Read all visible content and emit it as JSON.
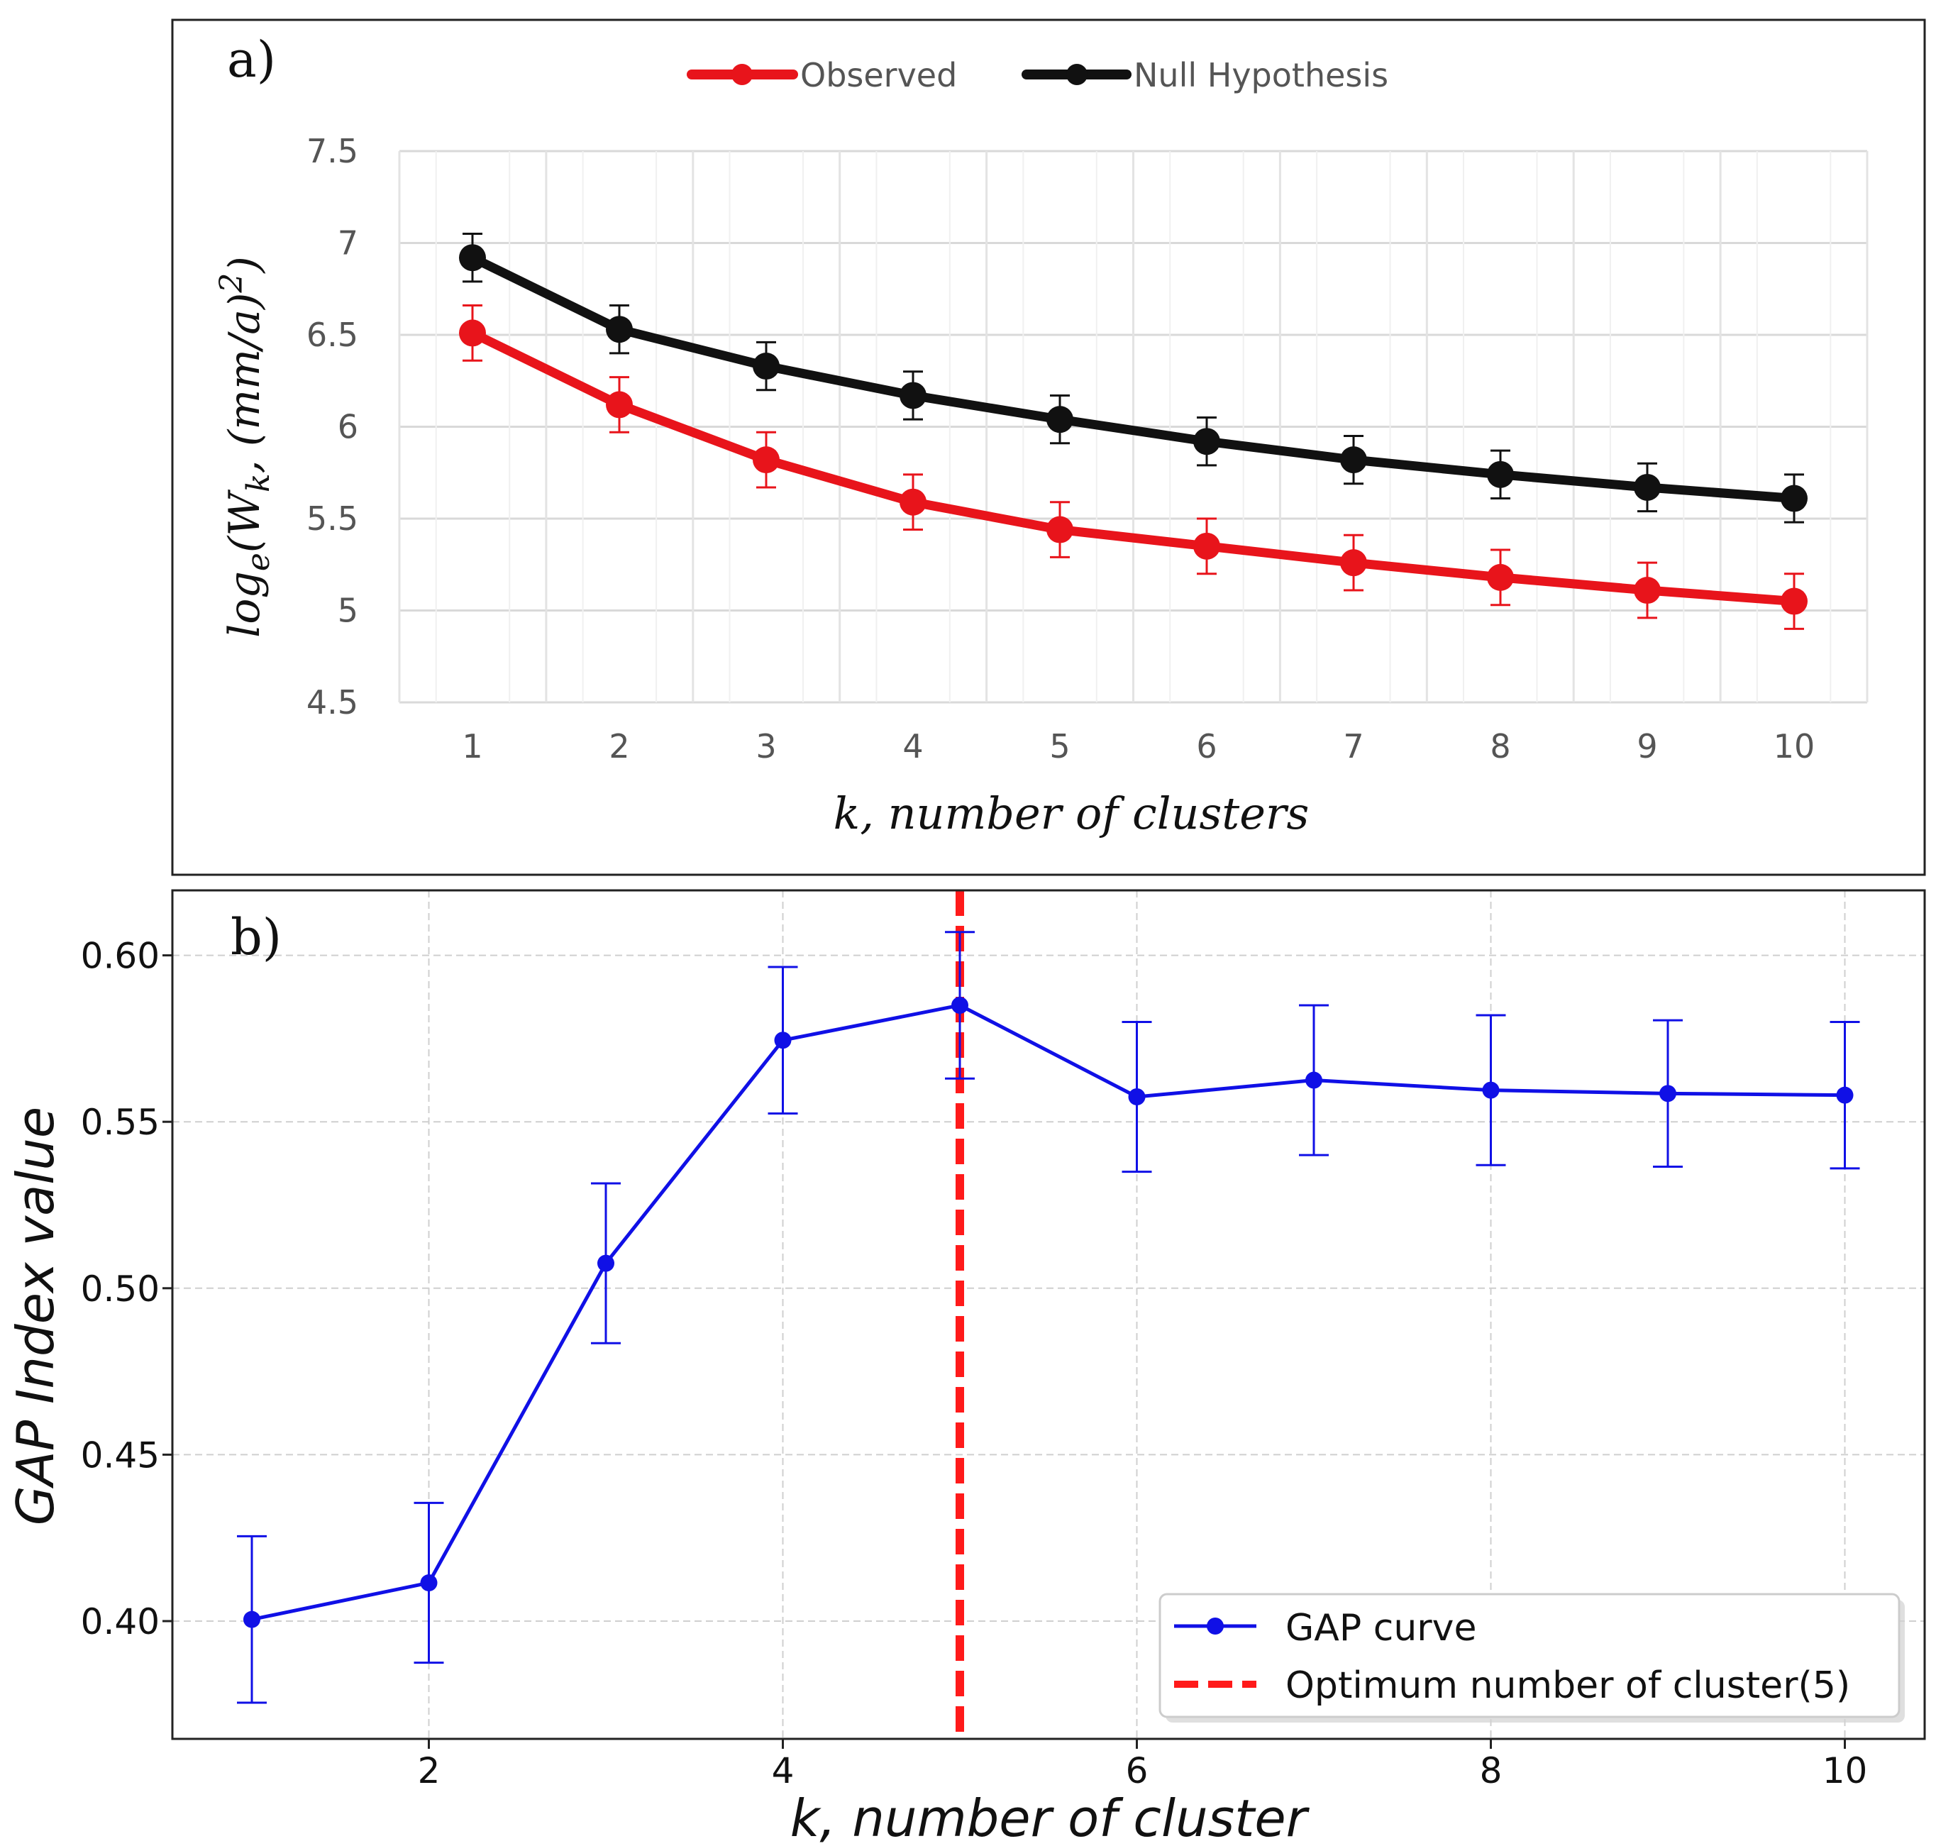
{
  "chart_data": [
    {
      "type": "line",
      "panel_label": "a)",
      "xlabel": "k, number of clusters",
      "ylabel_parts": {
        "log": "log",
        "sub_e": "e",
        "paren_open": "(W",
        "sub_k": "k",
        "mid": ", (mm/a)",
        "sup": "2",
        "close": ")"
      },
      "ylim": [
        4.5,
        7.5
      ],
      "x": [
        1,
        2,
        3,
        4,
        5,
        6,
        7,
        8,
        9,
        10
      ],
      "x_tick_labels": [
        "1",
        "2",
        "3",
        "4",
        "5",
        "6",
        "7",
        "8",
        "9",
        "10"
      ],
      "y_ticks": [
        4.5,
        5,
        5.5,
        6,
        6.5,
        7,
        7.5
      ],
      "y_tick_labels": [
        "4.5",
        "5",
        "5.5",
        "6",
        "6.5",
        "7",
        "7.5"
      ],
      "grid": true,
      "legend_position": "top-center",
      "series": [
        {
          "name": "Observed",
          "color": "#e8141b",
          "values": [
            6.51,
            6.12,
            5.82,
            5.59,
            5.44,
            5.35,
            5.26,
            5.18,
            5.11,
            5.05
          ],
          "error": [
            0.15,
            0.15,
            0.15,
            0.15,
            0.15,
            0.15,
            0.15,
            0.15,
            0.15,
            0.15
          ]
        },
        {
          "name": "Null Hypothesis",
          "color": "#111111",
          "values": [
            6.92,
            6.53,
            6.33,
            6.17,
            6.04,
            5.92,
            5.82,
            5.74,
            5.67,
            5.61
          ],
          "error": [
            0.13,
            0.13,
            0.13,
            0.13,
            0.13,
            0.13,
            0.13,
            0.13,
            0.13,
            0.13
          ]
        }
      ]
    },
    {
      "type": "line",
      "panel_label": "b)",
      "xlabel": "k, number of cluster",
      "ylabel": "GAP Index value",
      "xlim": [
        0.5,
        10.5
      ],
      "ylim": [
        0.363,
        0.619
      ],
      "x_ticks": [
        2,
        4,
        6,
        8,
        10
      ],
      "x_tick_labels": [
        "2",
        "4",
        "6",
        "8",
        "10"
      ],
      "y_ticks": [
        0.4,
        0.45,
        0.5,
        0.55,
        0.6
      ],
      "y_tick_labels": [
        "0.40",
        "0.45",
        "0.50",
        "0.55",
        "0.60"
      ],
      "grid": true,
      "legend_position": "bottom-right",
      "series": [
        {
          "name": "GAP curve",
          "color": "#1010e6",
          "x": [
            1,
            2,
            3,
            4,
            5,
            6,
            7,
            8,
            9,
            10
          ],
          "values": [
            0.4005,
            0.4115,
            0.5075,
            0.5745,
            0.585,
            0.5575,
            0.5625,
            0.5595,
            0.5585,
            0.558
          ],
          "error": [
            0.025,
            0.024,
            0.024,
            0.022,
            0.022,
            0.0225,
            0.0225,
            0.0225,
            0.022,
            0.022
          ]
        }
      ],
      "vline": {
        "name": "Optimum number of cluster(5)",
        "x": 5,
        "color": "#ff1a1a"
      }
    }
  ]
}
